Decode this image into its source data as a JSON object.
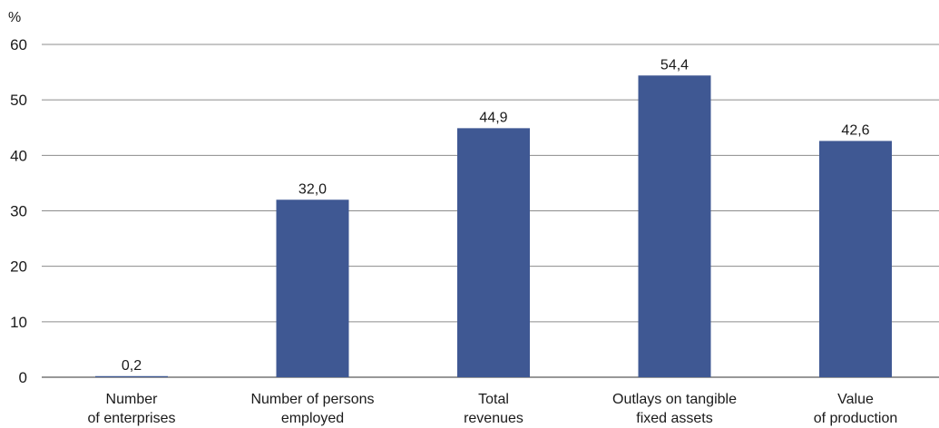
{
  "chart_data": {
    "type": "bar",
    "ylabel": "%",
    "ylim": [
      0,
      60
    ],
    "yticks": [
      0,
      10,
      20,
      30,
      40,
      50,
      60
    ],
    "grid": true,
    "bar_color": "#3f5893",
    "categories": [
      [
        "Number",
        "of enterprises"
      ],
      [
        "Number of persons",
        "employed"
      ],
      [
        "Total",
        "revenues"
      ],
      [
        "Outlays on tangible",
        "fixed assets"
      ],
      [
        "Value",
        "of production"
      ]
    ],
    "values": [
      0.2,
      32.0,
      44.9,
      54.4,
      42.6
    ],
    "value_labels": [
      "0,2",
      "32,0",
      "44,9",
      "54,4",
      "42,6"
    ]
  }
}
